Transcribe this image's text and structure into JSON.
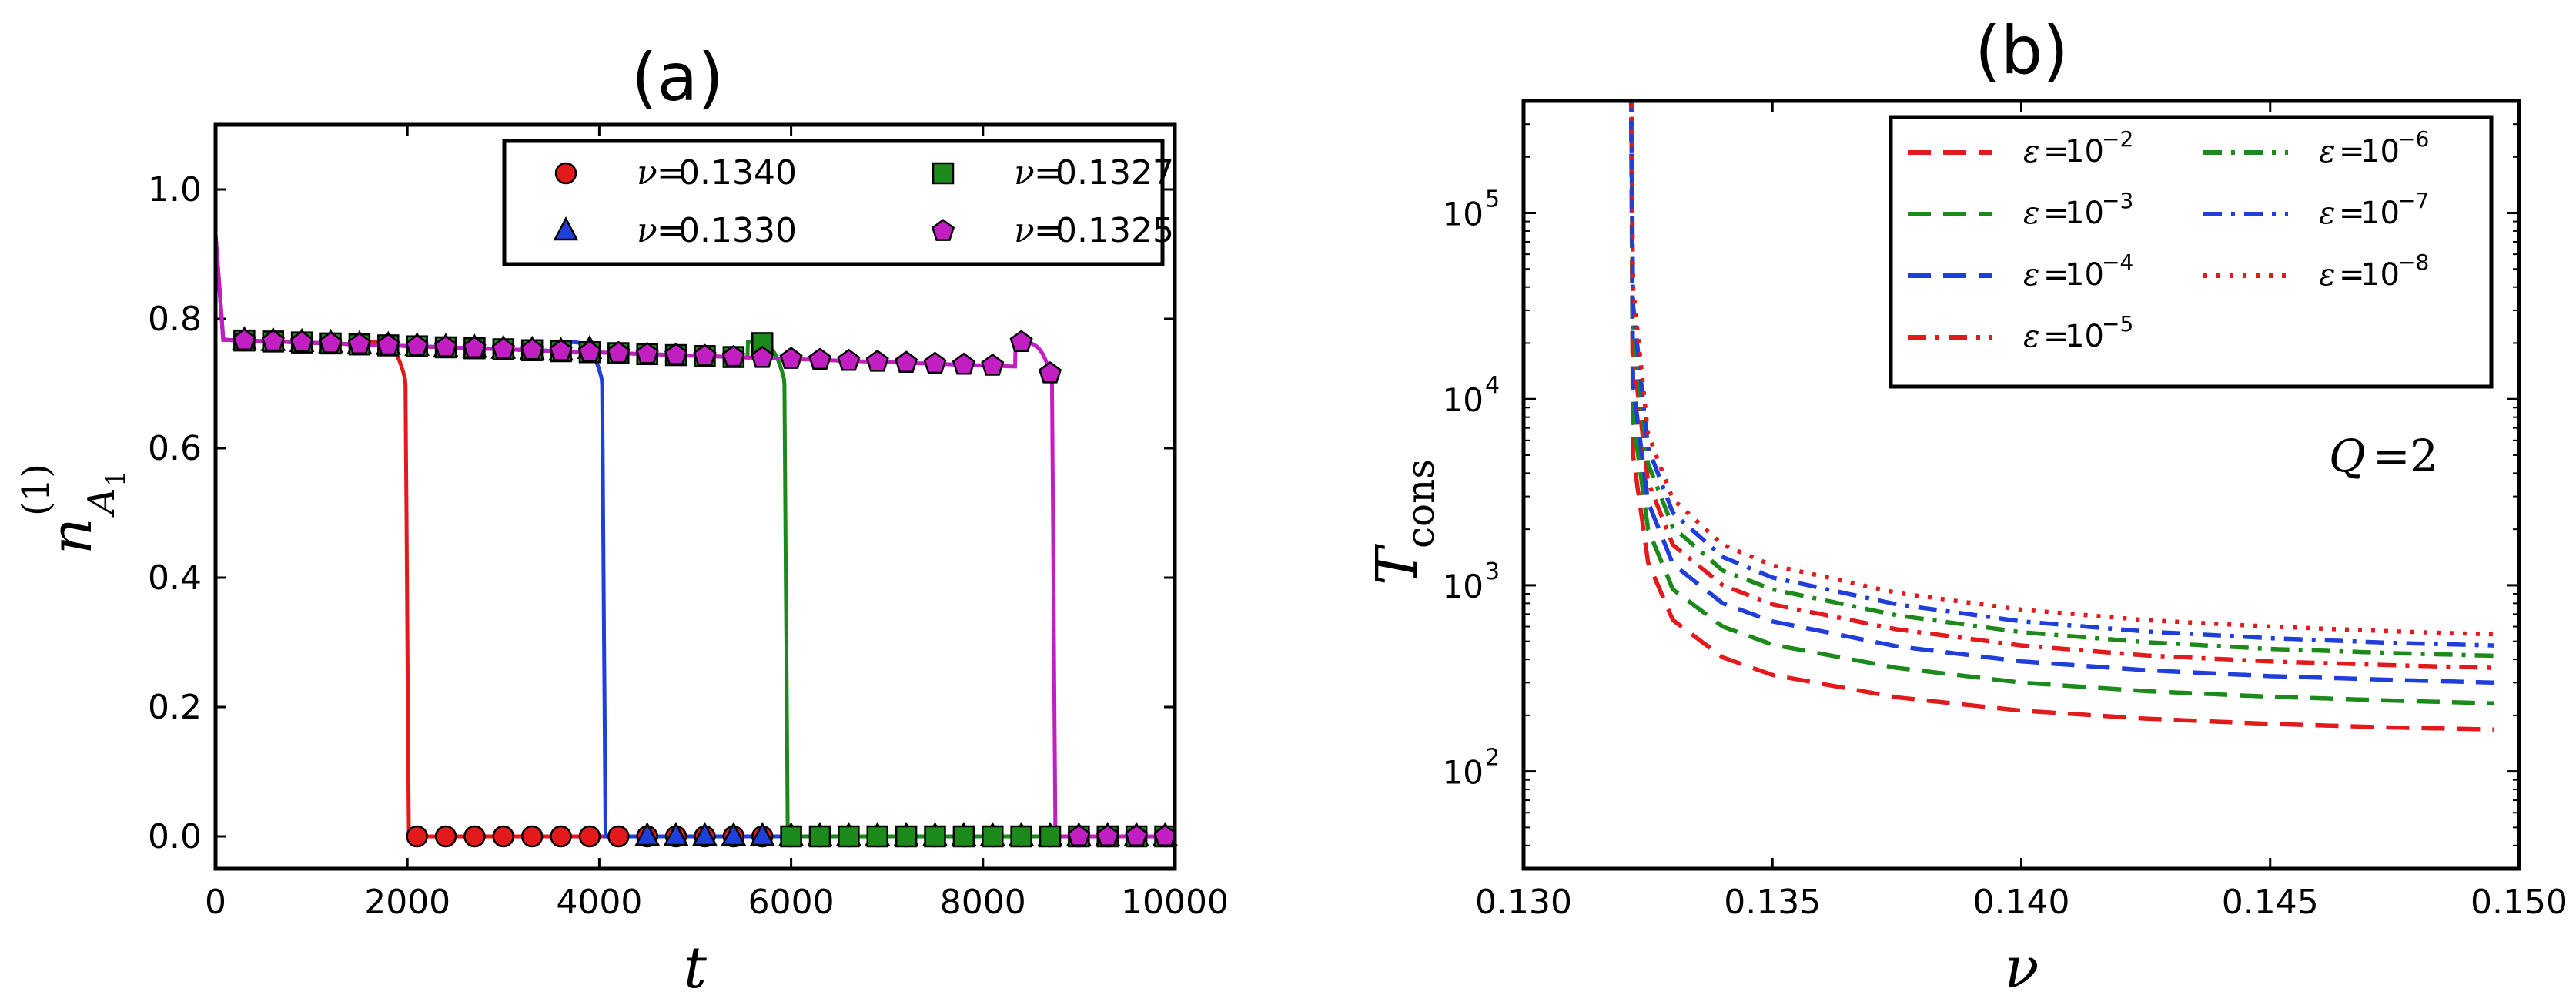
{
  "chart_data": [
    {
      "type": "line",
      "panel": "a",
      "title": "(a)",
      "xlabel": "t",
      "ylabel": "n",
      "ylabel_super": "(1)",
      "ylabel_sub": "A",
      "ylabel_subsub": "1",
      "xlim": [
        0,
        10000
      ],
      "ylim": [
        -0.05,
        1.1
      ],
      "xticks": [
        0,
        2000,
        4000,
        6000,
        8000,
        10000
      ],
      "xtick_labels": [
        "0",
        "2000",
        "4000",
        "6000",
        "8000",
        "10000"
      ],
      "yticks": [
        0.0,
        0.2,
        0.4,
        0.6,
        0.8,
        1.0
      ],
      "ytick_labels": [
        "0.0",
        "0.2",
        "0.4",
        "0.6",
        "0.8",
        "1.0"
      ],
      "plateau": 0.768,
      "initial_value": 0.93,
      "legend_position": "top-right",
      "series": [
        {
          "name": "ν = 0.1340",
          "legend_prefix": "ν",
          "legend_value": "0.1340",
          "color": "#e31a1c",
          "marker": "circle",
          "drop_t": 2000,
          "markers_t": [
            300,
            600,
            900,
            1200,
            1500,
            1800,
            2100,
            2400,
            2700,
            3000,
            3300,
            3600,
            3900,
            4200,
            4500,
            4800,
            5100,
            5400,
            5700,
            6000,
            6300,
            6600,
            6900,
            7200,
            7500,
            7800,
            8100,
            8400,
            8700,
            9000,
            9300,
            9600,
            9900
          ]
        },
        {
          "name": "ν = 0.1330",
          "legend_prefix": "ν",
          "legend_value": "0.1330",
          "color": "#1f3fdb",
          "marker": "triangle",
          "drop_t": 4050,
          "markers_t": [
            300,
            600,
            900,
            1200,
            1500,
            1800,
            2100,
            2400,
            2700,
            3000,
            3300,
            3600,
            3900,
            4500,
            4800,
            5100,
            5400,
            5700,
            6000,
            6300,
            6600,
            6900,
            7200,
            7500,
            7800,
            8100,
            8400,
            8700,
            9000,
            9300,
            9600,
            9900
          ]
        },
        {
          "name": "ν = 0.1327",
          "legend_prefix": "ν",
          "legend_value": "0.1327",
          "color": "#1b8a1b",
          "marker": "square",
          "drop_t": 5950,
          "markers_t": [
            300,
            600,
            900,
            1200,
            1500,
            1800,
            2100,
            2400,
            2700,
            3000,
            3300,
            3600,
            3900,
            4200,
            4500,
            4800,
            5100,
            5400,
            5700,
            6000,
            6300,
            6600,
            6900,
            7200,
            7500,
            7800,
            8100,
            8400,
            8700,
            9000,
            9300,
            9600,
            9900
          ]
        },
        {
          "name": "ν = 0.1325",
          "legend_prefix": "ν",
          "legend_value": "0.1325",
          "color": "#c21fc2",
          "marker": "pentagon",
          "drop_t": 8740,
          "markers_t": [
            300,
            600,
            900,
            1200,
            1500,
            1800,
            2100,
            2400,
            2700,
            3000,
            3300,
            3600,
            3900,
            4200,
            4500,
            4800,
            5100,
            5400,
            5700,
            6000,
            6300,
            6600,
            6900,
            7200,
            7500,
            7800,
            8100,
            8400,
            8700,
            9000,
            9300,
            9600,
            9900
          ]
        }
      ]
    },
    {
      "type": "line",
      "panel": "b",
      "title": "(b)",
      "xlabel": "ν",
      "ylabel": "T",
      "ylabel_sub": "cons",
      "yscale": "log",
      "xlim": [
        0.13,
        0.15
      ],
      "ylim": [
        30,
        400000
      ],
      "nu_critical": 0.13215,
      "xticks": [
        0.13,
        0.135,
        0.14,
        0.145,
        0.15
      ],
      "xtick_labels": [
        "0.130",
        "0.135",
        "0.140",
        "0.145",
        "0.150"
      ],
      "yticks": [
        100,
        1000,
        10000,
        100000
      ],
      "ytick_base": "10",
      "ytick_exps": [
        "2",
        "3",
        "4",
        "5"
      ],
      "annotation_var": "Q",
      "annotation_value": "2",
      "legend_position": "top-right",
      "series": [
        {
          "name": "ε = 10^-2",
          "legend_prefix": "ε",
          "legend_base": "10",
          "legend_exp": "−2",
          "color": "#e31a1c",
          "dash": "dashed",
          "values_nu": [
            0.1322,
            0.1325,
            0.133,
            0.134,
            0.135,
            0.1375,
            0.14,
            0.1425,
            0.145,
            0.1475,
            0.1495
          ],
          "values_T": [
            5000,
            1330,
            650,
            410,
            330,
            250,
            212,
            192,
            180,
            172,
            168
          ]
        },
        {
          "name": "ε = 10^-3",
          "legend_prefix": "ε",
          "legend_base": "10",
          "legend_exp": "−3",
          "color": "#1b8a1b",
          "dash": "dashed",
          "values_nu": [
            0.1322,
            0.1325,
            0.133,
            0.134,
            0.135,
            0.1375,
            0.14,
            0.1425,
            0.145,
            0.1475,
            0.1495
          ],
          "values_T": [
            8000,
            2000,
            950,
            600,
            480,
            360,
            300,
            270,
            252,
            240,
            232
          ]
        },
        {
          "name": "ε = 10^-4",
          "legend_prefix": "ε",
          "legend_base": "10",
          "legend_exp": "−4",
          "color": "#1f3fdb",
          "dash": "dashed",
          "values_nu": [
            0.1322,
            0.1325,
            0.133,
            0.134,
            0.135,
            0.1375,
            0.14,
            0.1425,
            0.145,
            0.1475,
            0.1495
          ],
          "values_T": [
            12000,
            2800,
            1300,
            800,
            640,
            470,
            390,
            350,
            325,
            310,
            300
          ]
        },
        {
          "name": "ε = 10^-5",
          "legend_prefix": "ε",
          "legend_base": "10",
          "legend_exp": "−5",
          "color": "#e31a1c",
          "dash": "dashdot",
          "values_nu": [
            0.1322,
            0.1325,
            0.133,
            0.134,
            0.135,
            0.1375,
            0.14,
            0.1425,
            0.145,
            0.1475,
            0.1495
          ],
          "values_T": [
            18000,
            3600,
            1650,
            1000,
            790,
            580,
            475,
            420,
            390,
            372,
            360
          ]
        },
        {
          "name": "ε = 10^-6",
          "legend_prefix": "ε",
          "legend_base": "10",
          "legend_exp": "−6",
          "color": "#1b8a1b",
          "dash": "dashdot",
          "values_nu": [
            0.1322,
            0.1325,
            0.133,
            0.134,
            0.135,
            0.1375,
            0.14,
            0.1425,
            0.145,
            0.1475,
            0.1495
          ],
          "values_T": [
            25000,
            4500,
            2050,
            1200,
            950,
            690,
            560,
            495,
            455,
            432,
            418
          ]
        },
        {
          "name": "ε = 10^-7",
          "legend_prefix": "ε",
          "legend_base": "10",
          "legend_exp": "−7",
          "color": "#1f3fdb",
          "dash": "dashdot",
          "values_nu": [
            0.1322,
            0.1325,
            0.133,
            0.134,
            0.135,
            0.1375,
            0.14,
            0.1425,
            0.145,
            0.1475,
            0.1495
          ],
          "values_T": [
            32000,
            5500,
            2450,
            1420,
            1100,
            790,
            640,
            565,
            520,
            490,
            475
          ]
        },
        {
          "name": "ε = 10^-8",
          "legend_prefix": "ε",
          "legend_base": "10",
          "legend_exp": "−8",
          "color": "#e31a1c",
          "dash": "dotted",
          "values_nu": [
            0.1322,
            0.1325,
            0.133,
            0.134,
            0.135,
            0.1375,
            0.14,
            0.1425,
            0.145,
            0.1475,
            0.1495
          ],
          "values_T": [
            40000,
            6500,
            2900,
            1650,
            1280,
            910,
            740,
            650,
            600,
            565,
            545
          ]
        }
      ]
    }
  ]
}
